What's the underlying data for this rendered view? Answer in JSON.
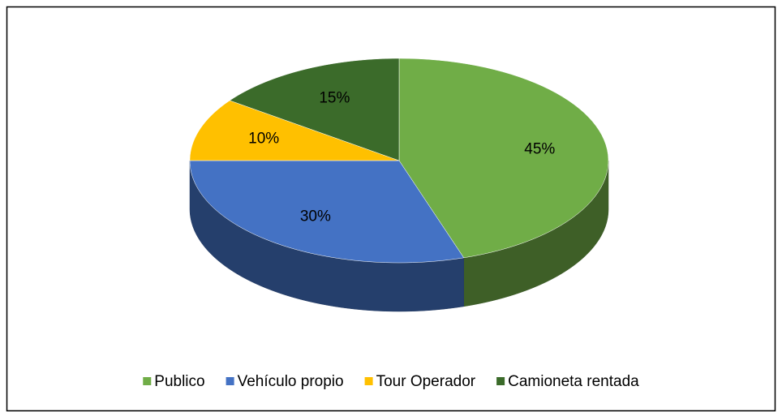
{
  "chart_data": {
    "type": "pie",
    "categories": [
      "Publico",
      "Vehículo propio",
      "Tour Operador",
      "Camioneta rentada"
    ],
    "values": [
      45,
      30,
      10,
      15
    ],
    "value_labels": [
      "45%",
      "30%",
      "10%",
      "15%"
    ],
    "colors": [
      "#70ad47",
      "#4472c4",
      "#ffc000",
      "#3b6b2a"
    ],
    "legend": "bottom"
  }
}
